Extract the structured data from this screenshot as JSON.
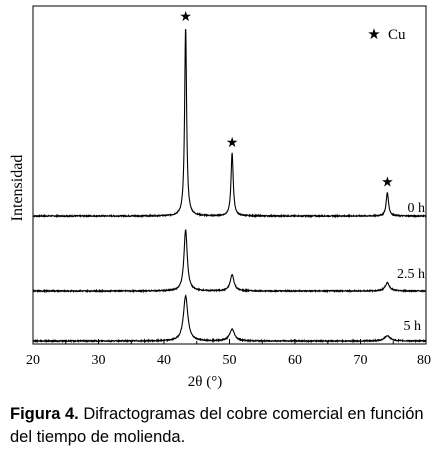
{
  "chart_data": {
    "type": "line",
    "xlabel": "2θ (°)",
    "ylabel": "Intensidad",
    "xlim": [
      20,
      80
    ],
    "x_ticks": [
      20,
      30,
      40,
      50,
      60,
      70,
      80
    ],
    "x_tick_labels": [
      "20",
      "30",
      "40",
      "50",
      "60",
      "70",
      "80"
    ],
    "y_ticks_shown": false,
    "legend": {
      "symbol": "★",
      "label": "Cu",
      "placement": "top-right"
    },
    "peak_marker_symbol": "★",
    "peak_marker_positions_2theta": [
      43.3,
      50.4,
      74.1
    ],
    "series": [
      {
        "name": "0 h",
        "baseline": 1.0,
        "peaks": [
          {
            "x": 43.3,
            "height": 10.5,
            "width": 0.18
          },
          {
            "x": 50.4,
            "height": 3.5,
            "width": 0.2
          },
          {
            "x": 74.1,
            "height": 1.3,
            "width": 0.22
          }
        ]
      },
      {
        "name": "2.5 h",
        "baseline": 1.0,
        "peaks": [
          {
            "x": 43.3,
            "height": 3.4,
            "width": 0.3
          },
          {
            "x": 50.4,
            "height": 0.9,
            "width": 0.35
          },
          {
            "x": 74.1,
            "height": 0.45,
            "width": 0.4
          }
        ]
      },
      {
        "name": "5 h",
        "baseline": 1.0,
        "peaks": [
          {
            "x": 43.3,
            "height": 2.5,
            "width": 0.4
          },
          {
            "x": 50.4,
            "height": 0.65,
            "width": 0.45
          },
          {
            "x": 74.1,
            "height": 0.3,
            "width": 0.5
          }
        ]
      }
    ]
  },
  "caption": {
    "label": "Figura 4.",
    "text": " Difractogramas del cobre comercial en función del tiempo de molienda."
  }
}
